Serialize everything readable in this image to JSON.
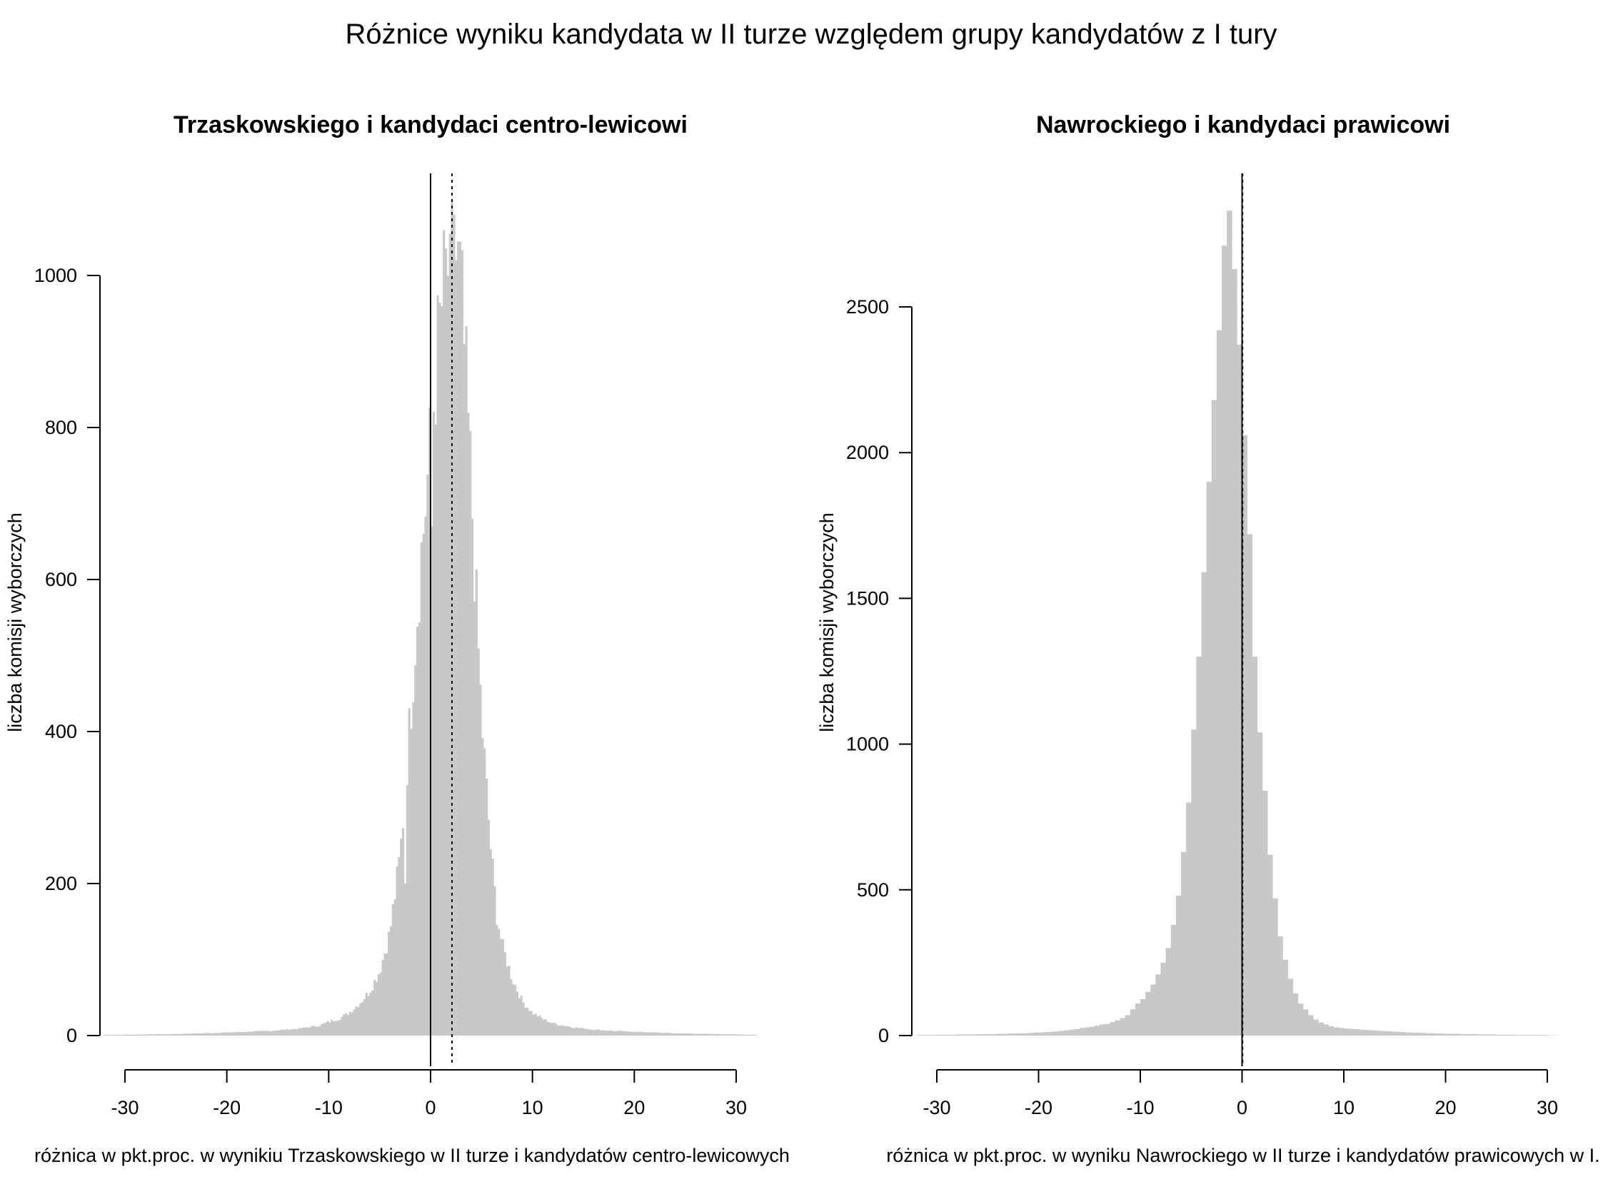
{
  "title": "Różnice wyniku kandydata w II turze względem grupy kandydatów z I tury",
  "chart_data": [
    {
      "type": "bar",
      "subtype": "histogram",
      "title": "Trzaskowskiego i kandydaci centro-lewicowi",
      "xlabel": "różnica w pkt.proc. w wynikiu Trzaskowskiego w II turze i kandydatów centro-lewicowych",
      "ylabel": "liczba komisji wyborczych",
      "xlim": [
        -32,
        32
      ],
      "ylim": [
        0,
        1000
      ],
      "x_ticks": [
        -30,
        -20,
        -10,
        0,
        10,
        20,
        30
      ],
      "y_ticks": [
        0,
        200,
        400,
        600,
        800,
        1000
      ],
      "bin_width": 0.2,
      "color": "#c8c8c8",
      "reference_lines": [
        {
          "x": 0,
          "style": "solid"
        },
        {
          "x": 2.1,
          "style": "dotted"
        }
      ],
      "profile": [
        [
          -31,
          1
        ],
        [
          -25,
          2
        ],
        [
          -20,
          4
        ],
        [
          -16,
          6
        ],
        [
          -13,
          9
        ],
        [
          -11,
          13
        ],
        [
          -10,
          18
        ],
        [
          -9,
          22
        ],
        [
          -8,
          30
        ],
        [
          -7,
          42
        ],
        [
          -6,
          58
        ],
        [
          -5,
          85
        ],
        [
          -4,
          135
        ],
        [
          -3,
          235
        ],
        [
          -2.5,
          320
        ],
        [
          -2,
          420
        ],
        [
          -1.5,
          520
        ],
        [
          -1,
          620
        ],
        [
          -0.5,
          700
        ],
        [
          0,
          780
        ],
        [
          0.5,
          870
        ],
        [
          1,
          950
        ],
        [
          1.5,
          1000
        ],
        [
          2,
          1020
        ],
        [
          2.5,
          1020
        ],
        [
          3,
          980
        ],
        [
          3.5,
          850
        ],
        [
          4,
          720
        ],
        [
          4.5,
          560
        ],
        [
          5,
          420
        ],
        [
          5.5,
          320
        ],
        [
          6,
          230
        ],
        [
          6.5,
          160
        ],
        [
          7,
          120
        ],
        [
          8,
          75
        ],
        [
          9,
          45
        ],
        [
          10,
          30
        ],
        [
          11,
          22
        ],
        [
          12,
          16
        ],
        [
          14,
          11
        ],
        [
          16,
          8
        ],
        [
          18,
          6
        ],
        [
          20,
          5
        ],
        [
          24,
          3
        ],
        [
          28,
          2
        ],
        [
          32,
          1
        ]
      ],
      "spikes": [
        {
          "x": 2.2,
          "y": 1080
        },
        {
          "x": 1.8,
          "y": 1055
        },
        {
          "x": 0.1,
          "y": 670
        },
        {
          "x": -2.6,
          "y": 200
        }
      ]
    },
    {
      "type": "bar",
      "subtype": "histogram",
      "title": "Nawrockiego i kandydaci prawicowi",
      "xlabel": "różnica w pkt.proc. w wyniku Nawrockiego w II turze i kandydatów prawicowych w I.",
      "ylabel": "liczba komisji wyborczych",
      "xlim": [
        -32,
        32
      ],
      "ylim": [
        0,
        2500
      ],
      "x_ticks": [
        -30,
        -20,
        -10,
        0,
        10,
        20,
        30
      ],
      "y_ticks": [
        0,
        500,
        1000,
        1500,
        2000,
        2500
      ],
      "bin_width": 0.5,
      "color": "#c8c8c8",
      "reference_lines": [
        {
          "x": 0,
          "style": "solid"
        },
        {
          "x": 0.05,
          "style": "dotted"
        }
      ],
      "bins_start": -32,
      "values": [
        2,
        2,
        2,
        2,
        3,
        3,
        3,
        3,
        4,
        4,
        4,
        4,
        5,
        5,
        5,
        5,
        6,
        6,
        7,
        7,
        8,
        8,
        9,
        10,
        11,
        12,
        13,
        14,
        16,
        18,
        20,
        22,
        26,
        28,
        30,
        34,
        38,
        40,
        46,
        52,
        60,
        70,
        90,
        110,
        125,
        150,
        175,
        210,
        250,
        300,
        380,
        480,
        630,
        800,
        1050,
        1300,
        1590,
        1900,
        2180,
        2420,
        2710,
        2830,
        2630,
        2370,
        2060,
        1720,
        1300,
        1040,
        840,
        620,
        470,
        340,
        260,
        195,
        145,
        110,
        90,
        70,
        55,
        45,
        38,
        32,
        28,
        26,
        24,
        23,
        22,
        20,
        19,
        18,
        17,
        16,
        15,
        14,
        13,
        12,
        11,
        10,
        10,
        9,
        8,
        8,
        7,
        7,
        6,
        6,
        6,
        5,
        5,
        5,
        4,
        4,
        4,
        4,
        3,
        3,
        3,
        3,
        2,
        2,
        2,
        2,
        2,
        2,
        1,
        1
      ]
    }
  ]
}
